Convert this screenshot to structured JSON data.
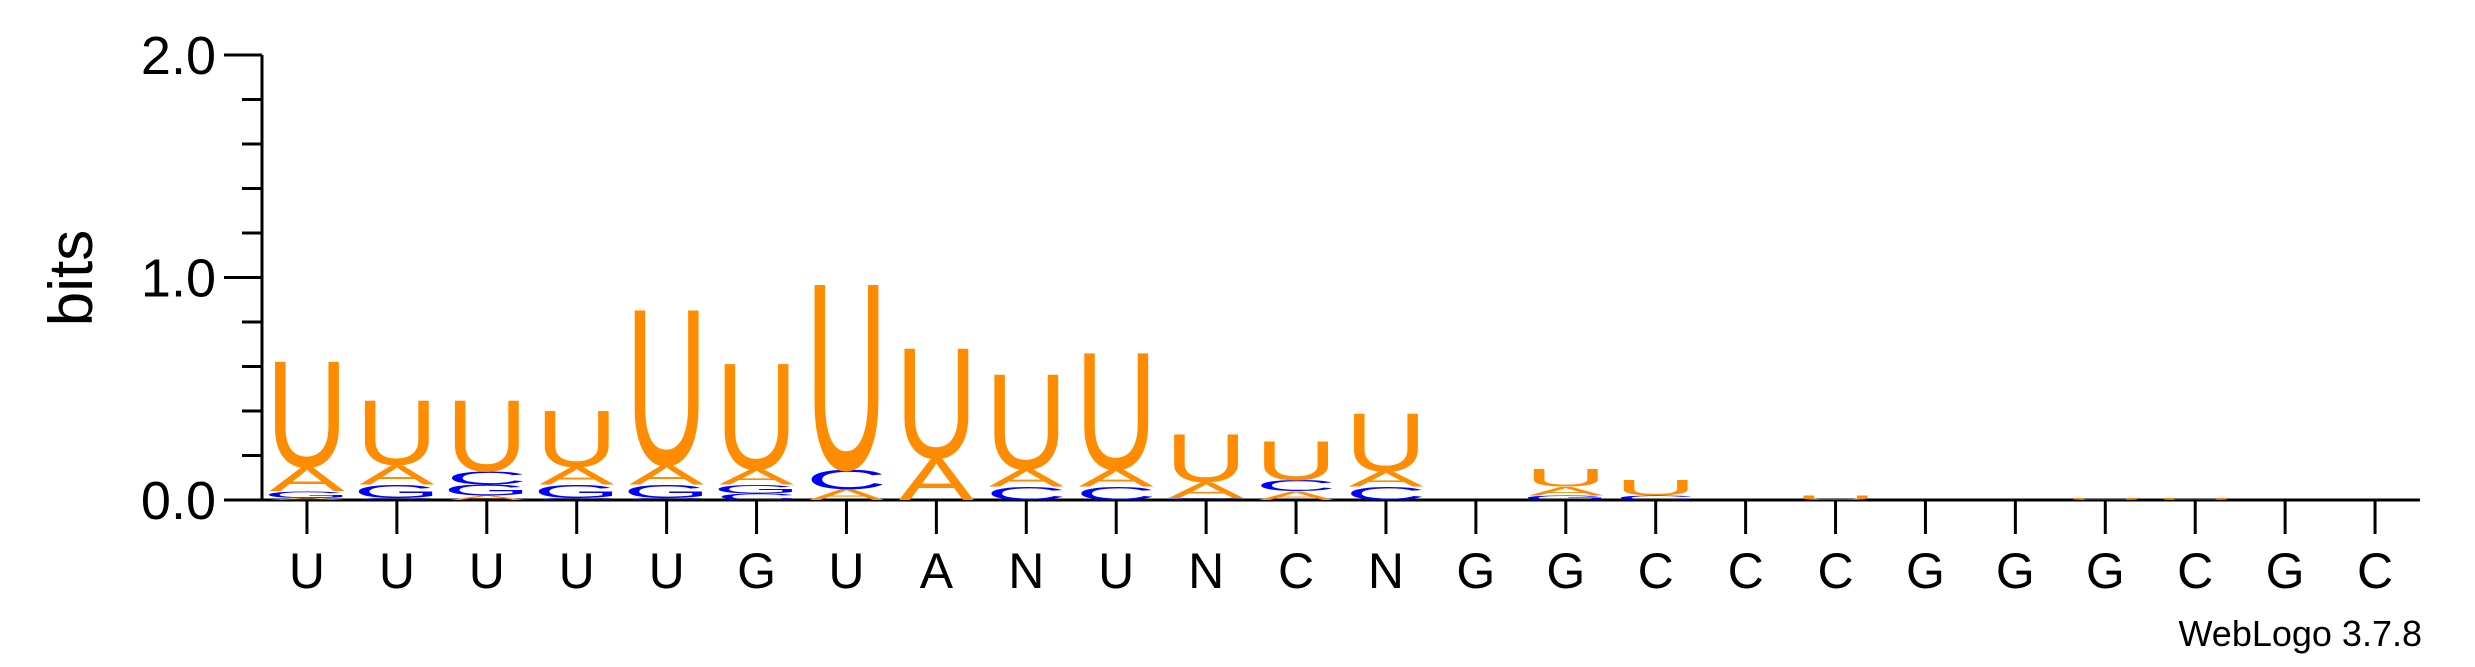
{
  "chart_data": {
    "type": "sequence-logo",
    "ylabel": "bits",
    "ylim": [
      0,
      2
    ],
    "yticks": [
      "0.0",
      "1.0",
      "2.0"
    ],
    "xlabels": [
      "U",
      "U",
      "U",
      "U",
      "U",
      "G",
      "U",
      "A",
      "N",
      "U",
      "N",
      "C",
      "N",
      "G",
      "G",
      "C",
      "C",
      "C",
      "G",
      "G",
      "G",
      "C",
      "G",
      "C"
    ],
    "colors": {
      "U": "#ff8c00",
      "A": "#ff8c00",
      "C": "#0000ff",
      "G": "#0000ff"
    },
    "columns": [
      [
        [
          "A",
          0.01
        ],
        [
          "G",
          0.03
        ],
        [
          "A",
          0.11
        ],
        [
          "U",
          0.49
        ]
      ],
      [
        [
          "C",
          0.01
        ],
        [
          "G",
          0.06
        ],
        [
          "A",
          0.09
        ],
        [
          "U",
          0.3
        ]
      ],
      [
        [
          "A",
          0.02
        ],
        [
          "G",
          0.05
        ],
        [
          "C",
          0.06
        ],
        [
          "U",
          0.33
        ]
      ],
      [
        [
          "C",
          0.01
        ],
        [
          "G",
          0.06
        ],
        [
          "A",
          0.08
        ],
        [
          "U",
          0.26
        ]
      ],
      [
        [
          "C",
          0.01
        ],
        [
          "G",
          0.06
        ],
        [
          "A",
          0.09
        ],
        [
          "U",
          0.72
        ]
      ],
      [
        [
          "C",
          0.03
        ],
        [
          "G",
          0.04
        ],
        [
          "A",
          0.07
        ],
        [
          "U",
          0.49
        ]
      ],
      [
        [
          "A",
          0.05
        ],
        [
          "C",
          0.09
        ],
        [
          "U",
          0.86
        ]
      ],
      [
        [
          "A",
          0.19
        ],
        [
          "U",
          0.51
        ]
      ],
      [
        [
          "C",
          0.06
        ],
        [
          "A",
          0.08
        ],
        [
          "U",
          0.44
        ]
      ],
      [
        [
          "C",
          0.06
        ],
        [
          "A",
          0.08
        ],
        [
          "U",
          0.54
        ]
      ],
      [
        [
          "C",
          0.01
        ],
        [
          "A",
          0.07
        ],
        [
          "U",
          0.22
        ]
      ],
      [
        [
          "A",
          0.04
        ],
        [
          "C",
          0.05
        ],
        [
          "U",
          0.18
        ]
      ],
      [
        [
          "C",
          0.06
        ],
        [
          "A",
          0.07
        ],
        [
          "U",
          0.27
        ]
      ],
      [],
      [
        [
          "G",
          0.02
        ],
        [
          "A",
          0.04
        ],
        [
          "U",
          0.08
        ]
      ],
      [
        [
          "C",
          0.02
        ],
        [
          "U",
          0.07
        ]
      ],
      [],
      [
        [
          "U",
          0.02
        ]
      ],
      [],
      [],
      [
        [
          "U",
          0.01
        ]
      ],
      [
        [
          "U",
          0.01
        ]
      ],
      [],
      []
    ],
    "credit": "WebLogo 3.7.8"
  }
}
